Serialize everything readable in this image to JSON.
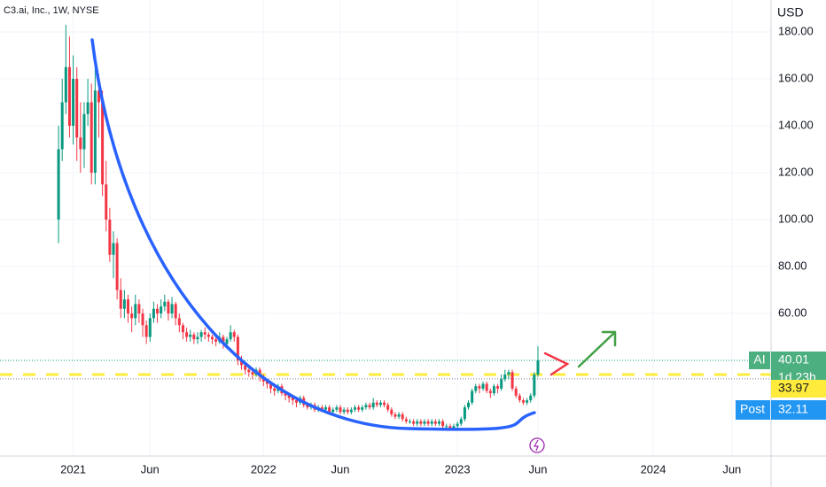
{
  "chart_data": {
    "type": "candlestick",
    "title": "C3.ai, Inc., 1W, NYSE",
    "y_axis_label": "USD",
    "up_color": "#089981",
    "down_color": "#f23645",
    "grid": true,
    "xlim": [
      -16,
      194.7
    ],
    "ylim": [
      -0.75,
      193.6
    ],
    "xticks": [
      {
        "value": 4,
        "label": "2021"
      },
      {
        "value": 25,
        "label": "Jun"
      },
      {
        "value": 56,
        "label": "2022"
      },
      {
        "value": 77,
        "label": "Jun"
      },
      {
        "value": 109,
        "label": "2023"
      },
      {
        "value": 131,
        "label": "Jun"
      },
      {
        "value": 162.5,
        "label": "2024"
      },
      {
        "value": 184,
        "label": "Jun"
      }
    ],
    "yticks": [
      {
        "value": 60,
        "label": "60.00"
      },
      {
        "value": 80,
        "label": "80.00"
      },
      {
        "value": 100,
        "label": "100.00"
      },
      {
        "value": 120,
        "label": "120.00"
      },
      {
        "value": 140,
        "label": "140.00"
      },
      {
        "value": 160,
        "label": "160.00"
      },
      {
        "value": 180,
        "label": "180.00"
      }
    ],
    "open": [
      100,
      130,
      150,
      165,
      140,
      160,
      135,
      130,
      145,
      150,
      120,
      155,
      150,
      115,
      100,
      85,
      90,
      70,
      62,
      66,
      60,
      58,
      64,
      60,
      55,
      50,
      58,
      62,
      60,
      63,
      65,
      60,
      64,
      58,
      55,
      52,
      50,
      51,
      49,
      50,
      52,
      51,
      50,
      49,
      48,
      50,
      47,
      49,
      52,
      50,
      40,
      38,
      36,
      35,
      34,
      36,
      33,
      31,
      30,
      28,
      27,
      29,
      26,
      25,
      24,
      23,
      22,
      24,
      21,
      20,
      21,
      19,
      20,
      19,
      20,
      18,
      19,
      20,
      18,
      19,
      18,
      19,
      20,
      19,
      20,
      21,
      20,
      22,
      21,
      22,
      21,
      19,
      17,
      16,
      17,
      15,
      14,
      14,
      13,
      14,
      13,
      14,
      13,
      14,
      13,
      14,
      12,
      12,
      11,
      12,
      13,
      15,
      20,
      22,
      27,
      29,
      28,
      30,
      27,
      26,
      29,
      28,
      32,
      34,
      35,
      28,
      25,
      23,
      22,
      23,
      25,
      34
    ],
    "high": [
      140,
      160,
      183,
      178,
      170,
      165,
      150,
      150,
      160,
      158,
      165,
      162,
      155,
      125,
      105,
      95,
      92,
      75,
      70,
      68,
      63,
      68,
      66,
      62,
      57,
      60,
      65,
      64,
      66,
      68,
      66,
      67,
      65,
      60,
      56,
      54,
      53,
      52,
      52,
      53,
      54,
      52,
      51,
      50,
      52,
      51,
      50,
      55,
      53,
      51,
      42,
      39,
      37,
      36,
      37,
      37,
      34,
      32,
      31,
      29,
      30,
      30,
      27,
      26,
      25,
      24,
      25,
      25,
      22,
      22,
      22,
      21,
      21,
      21,
      21,
      20,
      21,
      21,
      20,
      20,
      20,
      21,
      21,
      21,
      22,
      22,
      24,
      23,
      23,
      23,
      22,
      20,
      18,
      18,
      18,
      16,
      15,
      15,
      15,
      15,
      15,
      15,
      15,
      15,
      15,
      15,
      13,
      13,
      13,
      14,
      16,
      21,
      23,
      28,
      30,
      30,
      31,
      31,
      28,
      30,
      30,
      34,
      36,
      36,
      36,
      29,
      26,
      24,
      24,
      26,
      35,
      46
    ],
    "low": [
      90,
      125,
      145,
      135,
      132,
      125,
      120,
      122,
      140,
      115,
      115,
      135,
      110,
      95,
      82,
      75,
      66,
      58,
      58,
      56,
      52,
      55,
      56,
      50,
      47,
      48,
      56,
      56,
      58,
      61,
      57,
      58,
      55,
      52,
      49,
      48,
      48,
      47,
      47,
      48,
      49,
      48,
      47,
      46,
      47,
      45,
      46,
      48,
      48,
      38,
      36,
      34,
      33,
      32,
      33,
      31,
      29,
      28,
      26,
      25,
      26,
      25,
      23,
      22,
      21,
      20,
      21,
      20,
      19,
      19,
      18,
      18,
      18,
      18,
      17,
      17,
      18,
      17,
      17,
      17,
      17,
      18,
      18,
      18,
      19,
      19,
      19,
      20,
      20,
      20,
      18,
      16,
      15,
      15,
      14,
      13,
      13,
      12,
      12,
      12,
      12,
      12,
      12,
      12,
      12,
      11,
      11,
      10,
      10,
      11,
      12,
      14,
      19,
      21,
      26,
      26,
      27,
      26,
      24,
      25,
      26,
      27,
      31,
      32,
      27,
      24,
      22,
      21,
      21,
      22,
      24,
      33
    ],
    "close": [
      130,
      150,
      165,
      140,
      160,
      135,
      130,
      145,
      150,
      120,
      155,
      150,
      115,
      100,
      85,
      90,
      70,
      62,
      66,
      60,
      58,
      64,
      60,
      55,
      50,
      58,
      62,
      60,
      63,
      65,
      60,
      64,
      58,
      55,
      52,
      50,
      51,
      49,
      50,
      52,
      51,
      50,
      49,
      48,
      50,
      47,
      49,
      52,
      50,
      40,
      38,
      36,
      35,
      34,
      36,
      33,
      31,
      30,
      28,
      27,
      29,
      26,
      25,
      24,
      23,
      22,
      24,
      21,
      20,
      21,
      19,
      20,
      19,
      20,
      18,
      19,
      20,
      18,
      19,
      18,
      19,
      20,
      19,
      20,
      21,
      20,
      22,
      21,
      22,
      21,
      19,
      17,
      16,
      17,
      15,
      14,
      14,
      13,
      14,
      13,
      14,
      13,
      14,
      13,
      14,
      12,
      12,
      11,
      12,
      13,
      15,
      20,
      22,
      27,
      29,
      28,
      30,
      27,
      26,
      29,
      28,
      32,
      34,
      35,
      28,
      25,
      23,
      22,
      23,
      25,
      34,
      40.01
    ],
    "last_price": {
      "symbol": "AI",
      "value": 40.01,
      "countdown": "1d 23h"
    },
    "marked_level": 33.97,
    "post_market": {
      "label": "Post",
      "value": 32.11
    }
  }
}
